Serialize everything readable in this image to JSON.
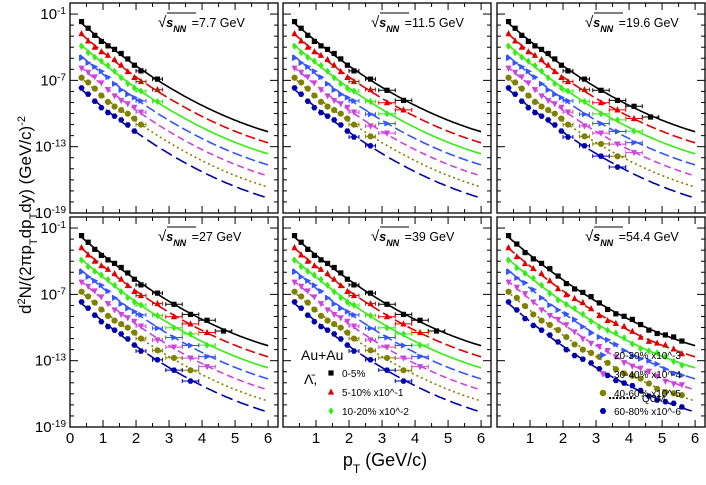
{
  "chart_data": {
    "type": "scatter",
    "y_scale": "log",
    "xlabel": "p_T (GeV/c)",
    "ylabel": "d^2N/(2πp_T dp_T dy) (GeV/c)^-2",
    "xlim": [
      0,
      6.3
    ],
    "ylim_exponents": [
      -19,
      0
    ],
    "x_ticks": [
      "0",
      "1",
      "2",
      "3",
      "4",
      "5",
      "6"
    ],
    "x_ticks_right": [
      "1",
      "2",
      "3",
      "4",
      "5",
      "6"
    ],
    "y_ticks": [
      "10^-1",
      "10^-7",
      "10^-13",
      "10^-19"
    ],
    "y_tick_exponents": [
      -1,
      -7,
      -13,
      -19
    ],
    "energy_prefix": "√s_NN",
    "panels": [
      {
        "energy_label": "=7.7 GeV",
        "data_xmax": 3.0
      },
      {
        "energy_label": "=11.5 GeV",
        "data_xmax": 3.8
      },
      {
        "energy_label": "=19.6 GeV",
        "data_xmax": 4.8
      },
      {
        "energy_label": "=27 GeV",
        "data_xmax": 4.8
      },
      {
        "energy_label": "=39 GeV",
        "data_xmax": 4.8
      },
      {
        "energy_label": "=54.4 GeV",
        "data_xmax": 5.8
      }
    ],
    "series": [
      {
        "name": "0-5%",
        "color": "#000000",
        "marker": "square",
        "dash": "",
        "y_at_0p3": -1.7
      },
      {
        "name": "5-10% x10^-1",
        "color": "#e00000",
        "marker": "triangle-up",
        "dash": "10 4",
        "y_at_0p3": -2.7
      },
      {
        "name": "10-20% x10^-2",
        "color": "#33ee11",
        "marker": "diamond",
        "dash": "",
        "y_at_0p3": -3.7
      },
      {
        "name": "20-30% x10^-3",
        "color": "#3355ff",
        "marker": "triangle-right",
        "dash": "10 4",
        "y_at_0p3": -4.7
      },
      {
        "name": "30-40% x10^-4",
        "color": "#cc44dd",
        "marker": "triangle-down",
        "dash": "7 4",
        "y_at_0p3": -5.7
      },
      {
        "name": "40-60% x10^-5",
        "color": "#808000",
        "marker": "circle",
        "dash": "2 3",
        "y_at_0p3": -6.7
      },
      {
        "name": "60-80% x10^-6",
        "color": "#0000aa",
        "marker": "hexagon",
        "dash": "12 5",
        "y_at_0p3": -7.7
      }
    ],
    "slope_per_GeV": -2.6,
    "legend": {
      "system": "Au+Au",
      "particle": "Λ̄,",
      "model_label": "QCM"
    }
  }
}
